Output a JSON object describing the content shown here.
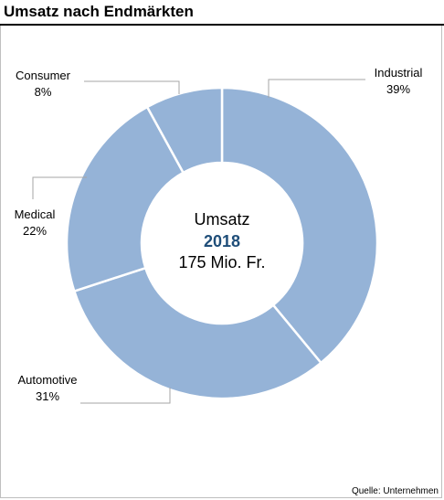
{
  "title": "Umsatz nach Endmärkten",
  "center": {
    "line1": "Umsatz",
    "line2": "2018",
    "line3": "175 Mio. Fr."
  },
  "source": "Quelle: Unternehmen",
  "colors": {
    "slice": "#95b3d7",
    "slice_border": "#ffffff",
    "leader": "#a6a6a6",
    "year": "#1f4e79"
  },
  "chart_data": {
    "type": "pie",
    "donut": true,
    "categories": [
      "Industrial",
      "Automotive",
      "Medical",
      "Consumer"
    ],
    "values": [
      39,
      31,
      22,
      8
    ],
    "labels": [
      "39%",
      "31%",
      "22%",
      "8%"
    ],
    "title": "Umsatz nach Endmärkten",
    "legend": "none"
  }
}
